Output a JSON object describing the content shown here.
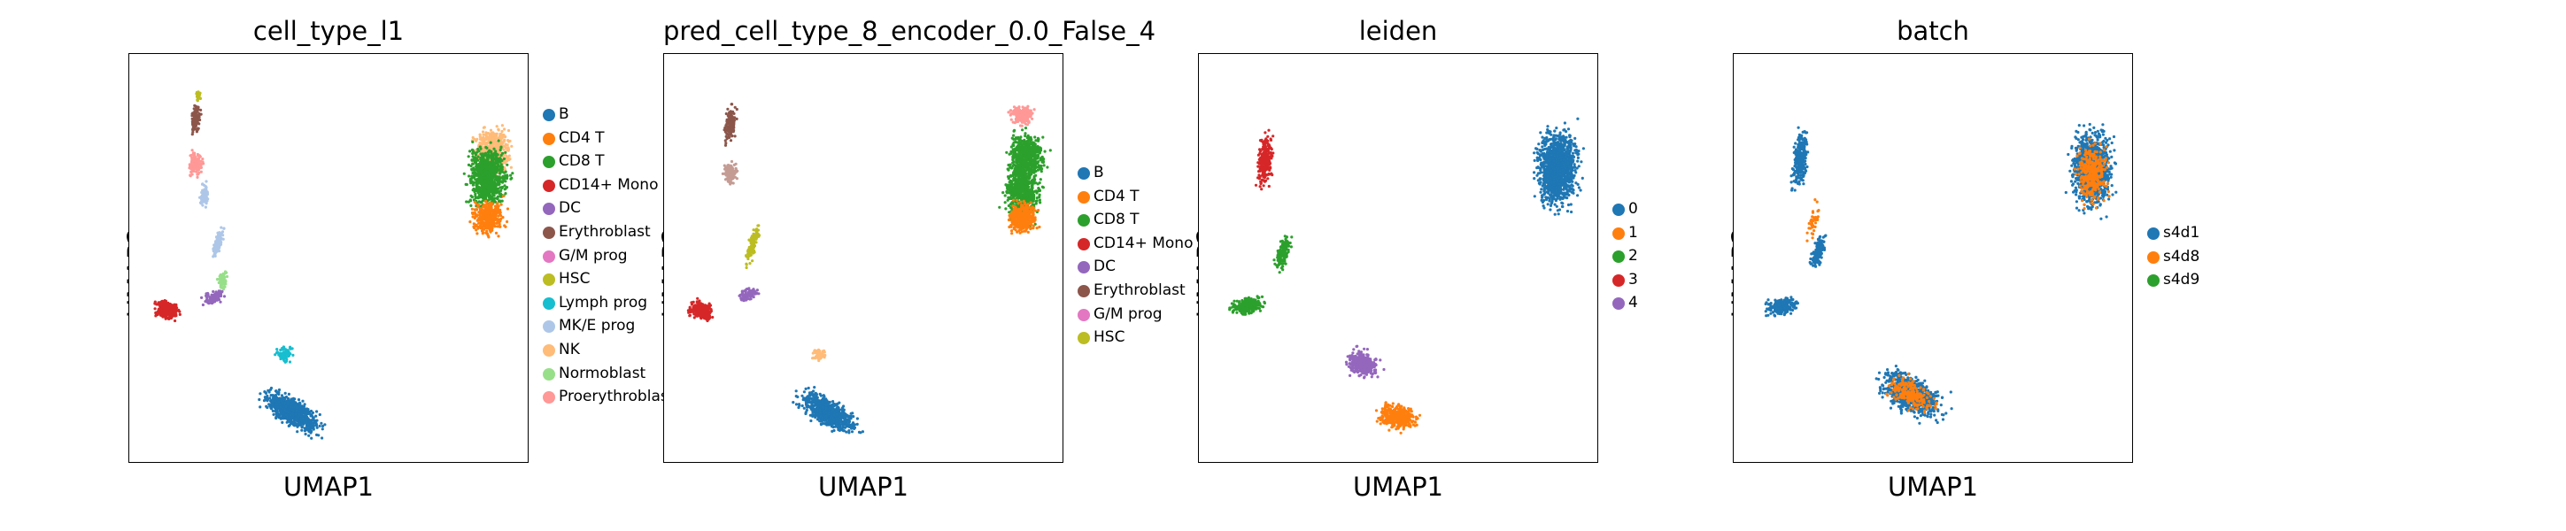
{
  "chart_data": [
    {
      "type": "scatter",
      "title": "cell_type_l1",
      "xlabel": "UMAP1",
      "ylabel": "UMAP2",
      "grid": false,
      "legend": "right",
      "categories": [
        "B",
        "CD4 T",
        "CD8 T",
        "CD14+ Mono",
        "DC",
        "Erythroblast",
        "G/M prog",
        "HSC",
        "Lymph prog",
        "MK/E prog",
        "NK",
        "Normoblast",
        "Proerythroblas"
      ],
      "colors": [
        "#1f77b4",
        "#ff7f0e",
        "#2ca02c",
        "#d62728",
        "#9467bd",
        "#8c564b",
        "#e377c2",
        "#bcbd22",
        "#17becf",
        "#aec7e8",
        "#ffbb78",
        "#98df8a",
        "#ff9896"
      ]
    },
    {
      "type": "scatter",
      "title": "pred_cell_type_8_encoder_0.0_False_4",
      "xlabel": "UMAP1",
      "ylabel": "UMAP2",
      "grid": false,
      "legend": "right",
      "categories": [
        "B",
        "CD4 T",
        "CD8 T",
        "CD14+ Mono",
        "DC",
        "Erythroblast",
        "G/M prog",
        "HSC"
      ],
      "colors": [
        "#1f77b4",
        "#ff7f0e",
        "#2ca02c",
        "#d62728",
        "#9467bd",
        "#8c564b",
        "#e377c2",
        "#bcbd22"
      ]
    },
    {
      "type": "scatter",
      "title": "leiden",
      "xlabel": "UMAP1",
      "ylabel": "UMAP2",
      "grid": false,
      "legend": "right",
      "categories": [
        "0",
        "1",
        "2",
        "3",
        "4"
      ],
      "colors": [
        "#1f77b4",
        "#ff7f0e",
        "#2ca02c",
        "#d62728",
        "#9467bd"
      ]
    },
    {
      "type": "scatter",
      "title": "batch",
      "xlabel": "UMAP1",
      "ylabel": "UMAP2",
      "grid": false,
      "legend": "right",
      "categories": [
        "s4d1",
        "s4d8",
        "s4d9"
      ],
      "colors": [
        "#1f77b4",
        "#ff7f0e",
        "#2ca02c"
      ]
    }
  ]
}
